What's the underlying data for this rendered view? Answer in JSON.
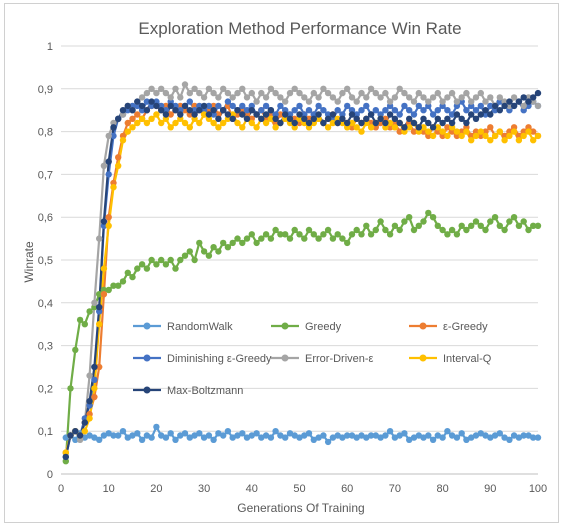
{
  "chart_data": {
    "type": "line",
    "title": "Exploration Method Performance Win Rate",
    "xlabel": "Generations Of Training",
    "ylabel": "Winrate",
    "xlim": [
      0,
      100
    ],
    "ylim": [
      0,
      1
    ],
    "xticks": [
      "0",
      "10",
      "20",
      "30",
      "40",
      "50",
      "60",
      "70",
      "80",
      "90",
      "100"
    ],
    "yticks": [
      "0",
      "0,1",
      "0,2",
      "0,3",
      "0,4",
      "0,5",
      "0,6",
      "0,7",
      "0,8",
      "0,9",
      "1"
    ],
    "grid": true,
    "legend_position": "inside-bottom",
    "series": [
      {
        "name": "RandomWalk",
        "color": "#5b9bd5",
        "values": [
          0.085,
          0.09,
          0.08,
          0.095,
          0.085,
          0.09,
          0.085,
          0.08,
          0.09,
          0.095,
          0.09,
          0.09,
          0.1,
          0.085,
          0.09,
          0.095,
          0.08,
          0.09,
          0.085,
          0.11,
          0.09,
          0.085,
          0.095,
          0.08,
          0.09,
          0.095,
          0.085,
          0.09,
          0.095,
          0.085,
          0.09,
          0.08,
          0.095,
          0.09,
          0.1,
          0.085,
          0.09,
          0.095,
          0.085,
          0.09,
          0.095,
          0.085,
          0.09,
          0.085,
          0.1,
          0.09,
          0.085,
          0.095,
          0.09,
          0.085,
          0.09,
          0.095,
          0.08,
          0.085,
          0.09,
          0.075,
          0.085,
          0.09,
          0.085,
          0.09,
          0.09,
          0.085,
          0.09,
          0.085,
          0.09,
          0.09,
          0.085,
          0.09,
          0.1,
          0.085,
          0.09,
          0.095,
          0.08,
          0.085,
          0.09,
          0.085,
          0.09,
          0.08,
          0.09,
          0.085,
          0.1,
          0.09,
          0.085,
          0.095,
          0.08,
          0.085,
          0.09,
          0.095,
          0.09,
          0.085,
          0.09,
          0.095,
          0.085,
          0.08,
          0.09,
          0.085,
          0.09,
          0.09,
          0.085,
          0.085
        ]
      },
      {
        "name": "Greedy",
        "color": "#70ad47",
        "values": [
          0.03,
          0.2,
          0.29,
          0.36,
          0.35,
          0.38,
          0.39,
          0.42,
          0.43,
          0.43,
          0.44,
          0.44,
          0.45,
          0.47,
          0.46,
          0.48,
          0.49,
          0.48,
          0.5,
          0.49,
          0.5,
          0.49,
          0.5,
          0.48,
          0.5,
          0.51,
          0.52,
          0.5,
          0.54,
          0.52,
          0.51,
          0.53,
          0.52,
          0.54,
          0.53,
          0.54,
          0.55,
          0.54,
          0.55,
          0.56,
          0.54,
          0.55,
          0.56,
          0.55,
          0.57,
          0.56,
          0.56,
          0.55,
          0.57,
          0.56,
          0.55,
          0.57,
          0.56,
          0.55,
          0.56,
          0.57,
          0.55,
          0.56,
          0.55,
          0.54,
          0.56,
          0.57,
          0.56,
          0.58,
          0.56,
          0.57,
          0.59,
          0.57,
          0.56,
          0.58,
          0.57,
          0.59,
          0.6,
          0.57,
          0.58,
          0.59,
          0.61,
          0.6,
          0.58,
          0.57,
          0.56,
          0.57,
          0.56,
          0.58,
          0.57,
          0.58,
          0.59,
          0.58,
          0.57,
          0.59,
          0.6,
          0.58,
          0.57,
          0.59,
          0.6,
          0.58,
          0.59,
          0.57,
          0.58,
          0.58
        ]
      },
      {
        "name": "ε-Greedy",
        "color": "#ed7d31",
        "values": [
          0.05,
          0.09,
          0.1,
          0.09,
          0.12,
          0.14,
          0.18,
          0.25,
          0.42,
          0.6,
          0.68,
          0.74,
          0.79,
          0.82,
          0.83,
          0.84,
          0.83,
          0.85,
          0.86,
          0.86,
          0.85,
          0.86,
          0.84,
          0.85,
          0.86,
          0.85,
          0.84,
          0.86,
          0.85,
          0.84,
          0.85,
          0.86,
          0.84,
          0.85,
          0.86,
          0.83,
          0.84,
          0.85,
          0.84,
          0.83,
          0.84,
          0.85,
          0.83,
          0.84,
          0.82,
          0.84,
          0.83,
          0.84,
          0.83,
          0.82,
          0.84,
          0.83,
          0.84,
          0.83,
          0.82,
          0.83,
          0.84,
          0.82,
          0.83,
          0.82,
          0.81,
          0.83,
          0.82,
          0.83,
          0.82,
          0.81,
          0.82,
          0.83,
          0.81,
          0.82,
          0.8,
          0.81,
          0.82,
          0.8,
          0.81,
          0.8,
          0.79,
          0.81,
          0.8,
          0.79,
          0.81,
          0.8,
          0.79,
          0.8,
          0.81,
          0.79,
          0.8,
          0.79,
          0.8,
          0.81,
          0.79,
          0.8,
          0.79,
          0.8,
          0.81,
          0.79,
          0.8,
          0.81,
          0.8,
          0.79
        ]
      },
      {
        "name": "Diminishing ε-Greedy",
        "color": "#4472c4",
        "values": [
          0.04,
          0.09,
          0.1,
          0.09,
          0.13,
          0.16,
          0.22,
          0.38,
          0.58,
          0.7,
          0.79,
          0.83,
          0.84,
          0.85,
          0.86,
          0.86,
          0.85,
          0.87,
          0.86,
          0.87,
          0.86,
          0.85,
          0.87,
          0.86,
          0.85,
          0.86,
          0.87,
          0.85,
          0.86,
          0.85,
          0.86,
          0.84,
          0.86,
          0.85,
          0.87,
          0.86,
          0.85,
          0.86,
          0.85,
          0.86,
          0.84,
          0.85,
          0.86,
          0.85,
          0.84,
          0.86,
          0.85,
          0.84,
          0.85,
          0.86,
          0.84,
          0.85,
          0.84,
          0.86,
          0.85,
          0.84,
          0.83,
          0.85,
          0.84,
          0.86,
          0.85,
          0.84,
          0.85,
          0.86,
          0.84,
          0.85,
          0.84,
          0.85,
          0.86,
          0.85,
          0.84,
          0.86,
          0.85,
          0.84,
          0.86,
          0.85,
          0.86,
          0.84,
          0.85,
          0.86,
          0.85,
          0.84,
          0.86,
          0.87,
          0.85,
          0.86,
          0.85,
          0.86,
          0.84,
          0.86,
          0.85,
          0.87,
          0.86,
          0.85,
          0.86,
          0.87,
          0.85,
          0.86,
          0.87,
          0.86
        ]
      },
      {
        "name": "Error-Driven-ε",
        "color": "#a5a5a5",
        "values": [
          0.05,
          0.09,
          0.1,
          0.08,
          0.12,
          0.23,
          0.4,
          0.55,
          0.72,
          0.79,
          0.82,
          0.83,
          0.84,
          0.86,
          0.85,
          0.87,
          0.88,
          0.89,
          0.9,
          0.89,
          0.9,
          0.89,
          0.88,
          0.9,
          0.88,
          0.91,
          0.89,
          0.9,
          0.89,
          0.88,
          0.9,
          0.89,
          0.88,
          0.9,
          0.89,
          0.88,
          0.89,
          0.9,
          0.88,
          0.89,
          0.87,
          0.89,
          0.88,
          0.9,
          0.89,
          0.88,
          0.87,
          0.89,
          0.9,
          0.89,
          0.88,
          0.87,
          0.89,
          0.88,
          0.9,
          0.89,
          0.88,
          0.87,
          0.89,
          0.9,
          0.88,
          0.87,
          0.89,
          0.88,
          0.9,
          0.89,
          0.88,
          0.89,
          0.87,
          0.88,
          0.9,
          0.89,
          0.88,
          0.87,
          0.89,
          0.88,
          0.87,
          0.88,
          0.89,
          0.87,
          0.88,
          0.89,
          0.87,
          0.88,
          0.89,
          0.87,
          0.88,
          0.89,
          0.87,
          0.88,
          0.86,
          0.88,
          0.87,
          0.86,
          0.88,
          0.87,
          0.86,
          0.88,
          0.87,
          0.86
        ]
      },
      {
        "name": "Interval-Q",
        "color": "#ffc000",
        "values": [
          0.05,
          0.09,
          0.1,
          0.09,
          0.1,
          0.13,
          0.2,
          0.35,
          0.48,
          0.58,
          0.67,
          0.72,
          0.78,
          0.8,
          0.81,
          0.82,
          0.83,
          0.82,
          0.83,
          0.84,
          0.82,
          0.83,
          0.81,
          0.82,
          0.83,
          0.82,
          0.81,
          0.83,
          0.82,
          0.84,
          0.83,
          0.82,
          0.81,
          0.82,
          0.83,
          0.84,
          0.82,
          0.81,
          0.83,
          0.82,
          0.81,
          0.83,
          0.82,
          0.83,
          0.81,
          0.82,
          0.83,
          0.82,
          0.81,
          0.83,
          0.82,
          0.81,
          0.82,
          0.83,
          0.82,
          0.81,
          0.82,
          0.83,
          0.82,
          0.81,
          0.82,
          0.81,
          0.8,
          0.82,
          0.81,
          0.82,
          0.83,
          0.81,
          0.82,
          0.81,
          0.82,
          0.8,
          0.81,
          0.82,
          0.8,
          0.81,
          0.8,
          0.79,
          0.81,
          0.8,
          0.79,
          0.81,
          0.8,
          0.79,
          0.8,
          0.78,
          0.79,
          0.8,
          0.79,
          0.78,
          0.79,
          0.8,
          0.78,
          0.79,
          0.8,
          0.78,
          0.79,
          0.8,
          0.78,
          0.79
        ]
      },
      {
        "name": "Max-Boltzmann",
        "color": "#264478",
        "values": [
          0.04,
          0.09,
          0.1,
          0.09,
          0.12,
          0.17,
          0.25,
          0.39,
          0.59,
          0.73,
          0.81,
          0.83,
          0.85,
          0.86,
          0.85,
          0.87,
          0.86,
          0.85,
          0.87,
          0.86,
          0.85,
          0.84,
          0.86,
          0.85,
          0.84,
          0.86,
          0.85,
          0.84,
          0.85,
          0.86,
          0.84,
          0.85,
          0.83,
          0.85,
          0.84,
          0.83,
          0.85,
          0.84,
          0.83,
          0.85,
          0.84,
          0.83,
          0.84,
          0.85,
          0.83,
          0.82,
          0.84,
          0.83,
          0.82,
          0.84,
          0.83,
          0.82,
          0.83,
          0.84,
          0.82,
          0.83,
          0.84,
          0.82,
          0.83,
          0.82,
          0.84,
          0.83,
          0.82,
          0.83,
          0.84,
          0.82,
          0.83,
          0.82,
          0.84,
          0.83,
          0.82,
          0.81,
          0.83,
          0.82,
          0.81,
          0.83,
          0.82,
          0.81,
          0.83,
          0.82,
          0.83,
          0.82,
          0.84,
          0.83,
          0.82,
          0.84,
          0.83,
          0.84,
          0.85,
          0.84,
          0.86,
          0.85,
          0.86,
          0.87,
          0.86,
          0.87,
          0.88,
          0.87,
          0.88,
          0.89
        ]
      }
    ]
  }
}
